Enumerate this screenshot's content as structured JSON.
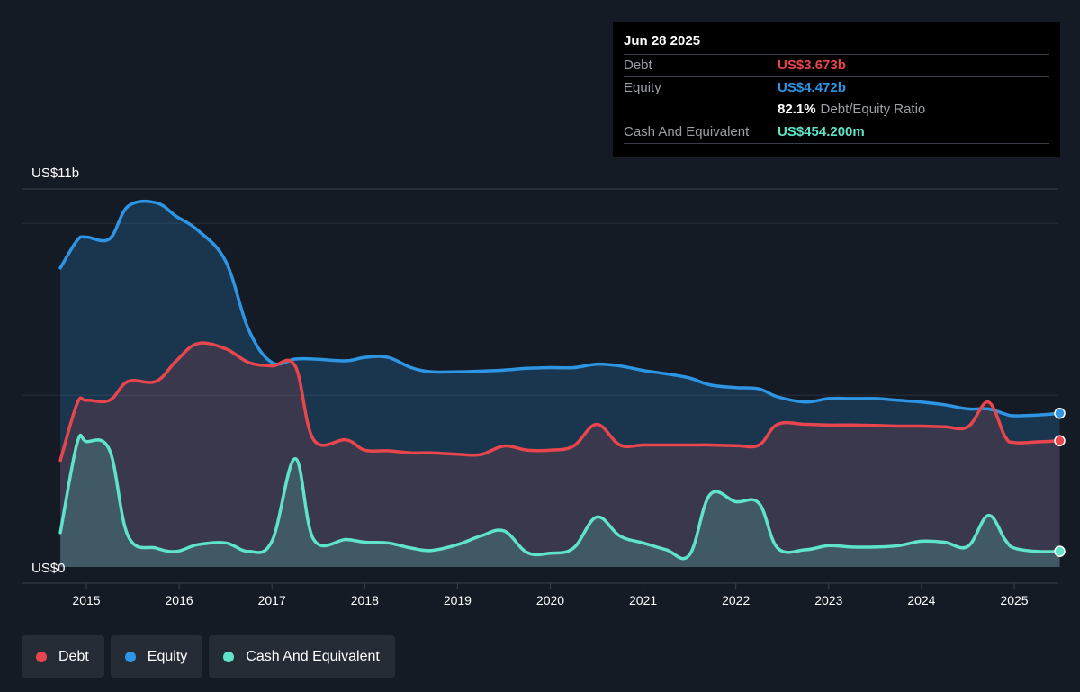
{
  "colors": {
    "debt": "#e8454d",
    "equity": "#2d95e4",
    "cash": "#5fe3c9",
    "background": "#151b24",
    "grid": "#2a303a"
  },
  "tooltip": {
    "date": "Jun 28 2025",
    "debt_label": "Debt",
    "debt_value": "US$3.673b",
    "equity_label": "Equity",
    "equity_value": "US$4.472b",
    "ratio_value": "82.1%",
    "ratio_label": "Debt/Equity Ratio",
    "cash_label": "Cash And Equivalent",
    "cash_value": "US$454.200m"
  },
  "legend": {
    "debt": "Debt",
    "equity": "Equity",
    "cash": "Cash And Equivalent"
  },
  "chart_data": {
    "type": "area",
    "ylim": [
      0,
      11
    ],
    "y_top_label": "US$11b",
    "y_bottom_label": "US$0",
    "x_ticks": [
      "2015",
      "2016",
      "2017",
      "2018",
      "2019",
      "2020",
      "2021",
      "2022",
      "2023",
      "2024",
      "2025"
    ],
    "grid": true,
    "legend_position": "bottom-left",
    "x": [
      2014.72,
      2014.9,
      2015.0,
      2015.25,
      2015.45,
      2015.75,
      2015.97,
      2016.2,
      2016.5,
      2016.75,
      2017.0,
      2017.25,
      2017.45,
      2017.8,
      2018.0,
      2018.25,
      2018.5,
      2018.72,
      2019.0,
      2019.25,
      2019.5,
      2019.75,
      2020.0,
      2020.25,
      2020.5,
      2020.75,
      2021.0,
      2021.25,
      2021.5,
      2021.72,
      2022.0,
      2022.25,
      2022.45,
      2022.75,
      2023.0,
      2023.25,
      2023.5,
      2023.75,
      2024.0,
      2024.25,
      2024.5,
      2024.72,
      2024.9,
      2025.0,
      2025.25,
      2025.49
    ],
    "series": [
      {
        "name": "Debt",
        "values": [
          3.1,
          4.75,
          4.85,
          4.85,
          5.4,
          5.4,
          6.0,
          6.5,
          6.35,
          5.95,
          5.85,
          5.85,
          3.7,
          3.7,
          3.4,
          3.38,
          3.32,
          3.32,
          3.28,
          3.27,
          3.52,
          3.4,
          3.4,
          3.52,
          4.15,
          3.55,
          3.55,
          3.55,
          3.55,
          3.55,
          3.53,
          3.55,
          4.15,
          4.15,
          4.13,
          4.13,
          4.12,
          4.1,
          4.1,
          4.08,
          4.08,
          4.8,
          3.8,
          3.62,
          3.64,
          3.673
        ]
      },
      {
        "name": "Equity",
        "values": [
          8.7,
          9.5,
          9.6,
          9.55,
          10.5,
          10.6,
          10.2,
          9.8,
          8.9,
          6.9,
          5.95,
          6.05,
          6.05,
          6.0,
          6.1,
          6.1,
          5.8,
          5.68,
          5.68,
          5.7,
          5.73,
          5.78,
          5.8,
          5.8,
          5.9,
          5.85,
          5.72,
          5.62,
          5.5,
          5.3,
          5.22,
          5.18,
          4.95,
          4.8,
          4.9,
          4.9,
          4.9,
          4.85,
          4.8,
          4.72,
          4.6,
          4.6,
          4.45,
          4.4,
          4.42,
          4.472
        ]
      },
      {
        "name": "Cash And Equivalent",
        "values": [
          1.0,
          3.6,
          3.65,
          3.4,
          0.9,
          0.55,
          0.45,
          0.65,
          0.7,
          0.45,
          0.75,
          3.15,
          0.8,
          0.8,
          0.72,
          0.7,
          0.55,
          0.48,
          0.65,
          0.9,
          1.05,
          0.42,
          0.4,
          0.55,
          1.45,
          0.9,
          0.7,
          0.5,
          0.35,
          2.1,
          1.9,
          1.85,
          0.55,
          0.5,
          0.62,
          0.58,
          0.58,
          0.62,
          0.75,
          0.72,
          0.6,
          1.5,
          0.8,
          0.55,
          0.45,
          0.454
        ]
      }
    ]
  }
}
